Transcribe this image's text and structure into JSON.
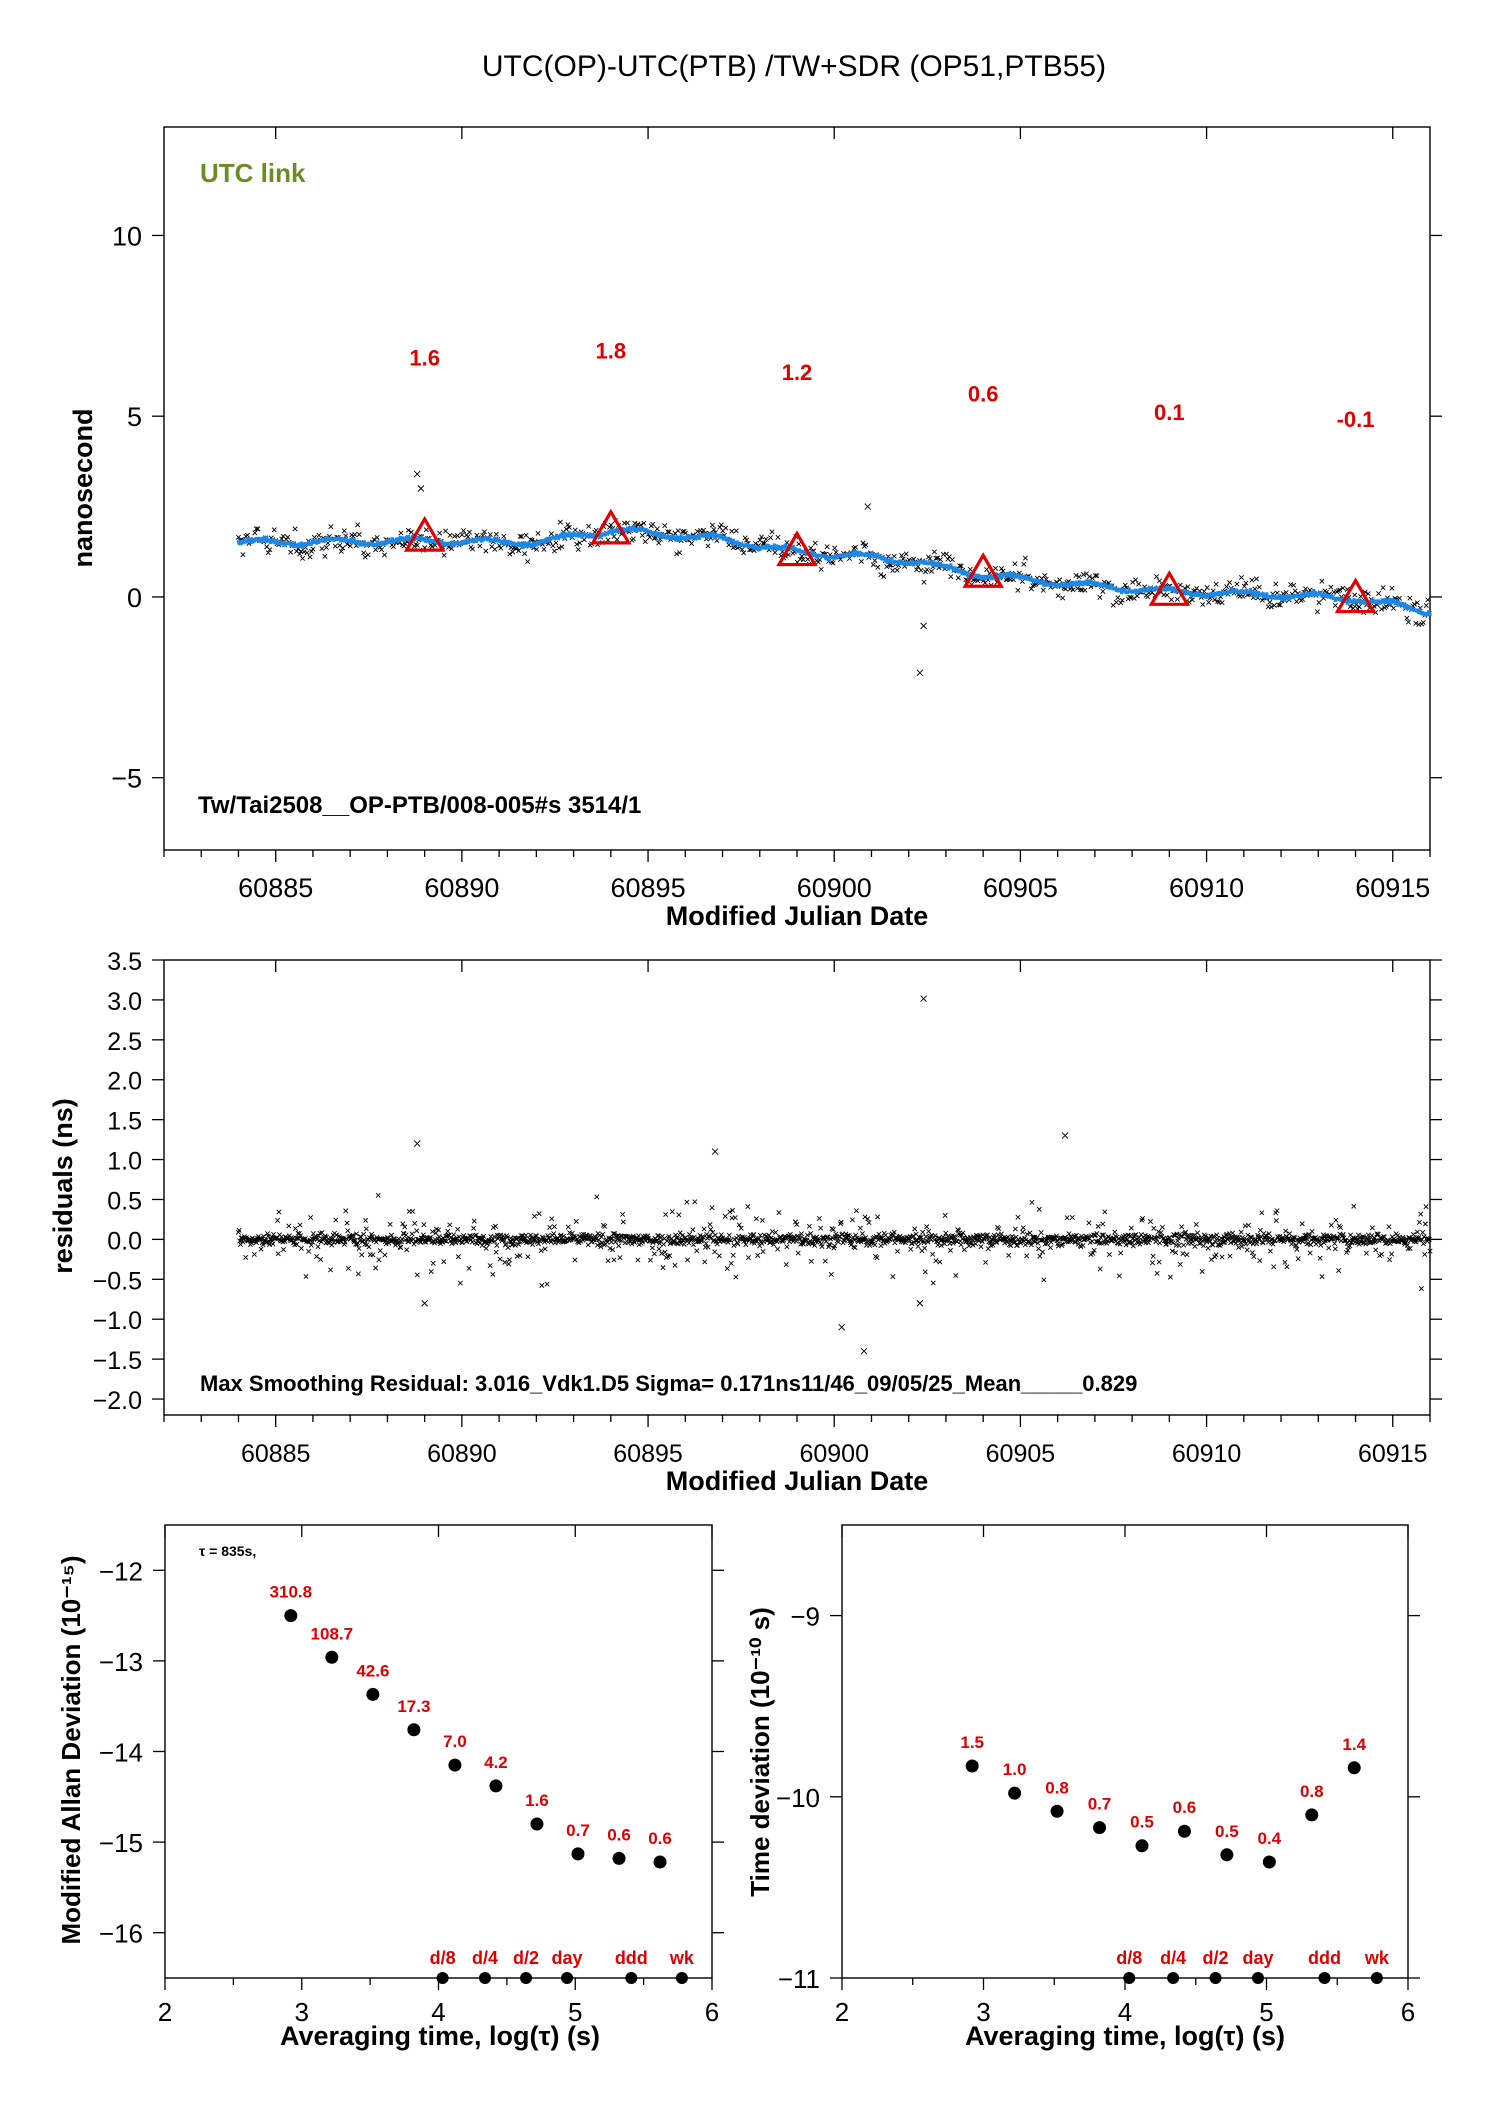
{
  "colors": {
    "axis": "#000000",
    "smooth": "#1e88e5",
    "marker": "#e00000",
    "label_red": "#e00000",
    "utc_link": "#6b8e23",
    "points": "#000000"
  },
  "chart_data": [
    {
      "id": "main",
      "type": "scatter",
      "title": "UTC(OP)-UTC(PTB)  /TW+SDR  (OP51,PTB55)",
      "xlabel": "Modified Julian Date",
      "ylabel": "nanosecond",
      "xlim": [
        60882.0,
        60916.0
      ],
      "ylim": [
        -7.0,
        13.0
      ],
      "xticks": [
        60885,
        60890,
        60895,
        60900,
        60905,
        60910,
        60915
      ],
      "yticks": [
        -5,
        0,
        5,
        10
      ],
      "legend_text": "UTC link",
      "footer_text": "Tw/Tai2508__OP-PTB/008-005#s  3514/1",
      "series_start_mjd": 60884.0,
      "series_end_mjd": 60916.0,
      "trend": [
        {
          "x": 60884.0,
          "y": 1.5
        },
        {
          "x": 60889.0,
          "y": 1.55
        },
        {
          "x": 60892.0,
          "y": 1.5
        },
        {
          "x": 60894.0,
          "y": 1.85
        },
        {
          "x": 60897.0,
          "y": 1.6
        },
        {
          "x": 60899.0,
          "y": 1.25
        },
        {
          "x": 60902.0,
          "y": 1.0
        },
        {
          "x": 60904.0,
          "y": 0.6
        },
        {
          "x": 60907.0,
          "y": 0.3
        },
        {
          "x": 60909.0,
          "y": 0.15
        },
        {
          "x": 60912.0,
          "y": 0.05
        },
        {
          "x": 60914.0,
          "y": -0.05
        },
        {
          "x": 60916.0,
          "y": -0.4
        }
      ],
      "outliers": [
        {
          "x": 60888.8,
          "y": 3.4
        },
        {
          "x": 60888.9,
          "y": 3.0
        },
        {
          "x": 60900.9,
          "y": 2.5
        },
        {
          "x": 60902.3,
          "y": -2.1
        },
        {
          "x": 60902.4,
          "y": -0.8
        }
      ],
      "markers": [
        {
          "x": 60889.0,
          "y": 1.6,
          "label": "1.6"
        },
        {
          "x": 60894.0,
          "y": 1.8,
          "label": "1.8"
        },
        {
          "x": 60899.0,
          "y": 1.2,
          "label": "1.2"
        },
        {
          "x": 60904.0,
          "y": 0.6,
          "label": "0.6"
        },
        {
          "x": 60909.0,
          "y": 0.1,
          "label": "0.1"
        },
        {
          "x": 60914.0,
          "y": -0.1,
          "label": "-0.1"
        }
      ]
    },
    {
      "id": "residuals",
      "type": "scatter",
      "xlabel": "Modified Julian Date",
      "ylabel": "residuals (ns)",
      "xlim": [
        60882.0,
        60916.0
      ],
      "ylim": [
        -2.2,
        3.5
      ],
      "xticks": [
        60885,
        60890,
        60895,
        60900,
        60905,
        60910,
        60915
      ],
      "yticks": [
        -2.0,
        -1.5,
        -1.0,
        -0.5,
        0.0,
        0.5,
        1.0,
        1.5,
        2.0,
        2.5,
        3.0,
        3.5
      ],
      "ytick_labels": [
        "−2.0",
        "−1.5",
        "−1.0",
        "−0.5",
        "0.0",
        "0.5",
        "1.0",
        "1.5",
        "2.0",
        "2.5",
        "3.0",
        "3.5"
      ],
      "footer_text": "Max Smoothing Residual: 3.016_Vdk1.D5  Sigma= 0.171ns11/46_09/05/25_Mean_____0.829",
      "max_residual": {
        "x": 60902.4,
        "y": 3.016
      },
      "outliers": [
        {
          "x": 60888.8,
          "y": 1.2
        },
        {
          "x": 60896.8,
          "y": 1.1
        },
        {
          "x": 60906.2,
          "y": 1.3
        },
        {
          "x": 60900.2,
          "y": -1.1
        },
        {
          "x": 60900.8,
          "y": -1.4
        },
        {
          "x": 60902.3,
          "y": -0.8
        },
        {
          "x": 60889.0,
          "y": -0.8
        }
      ]
    },
    {
      "id": "mdev",
      "type": "scatter",
      "xlabel": "Averaging time, log(τ) (s)",
      "ylabel": "Modified Allan Deviation (10⁻¹⁵)",
      "xlim": [
        2,
        6
      ],
      "ylim": [
        -16.5,
        -11.5
      ],
      "xticks": [
        2,
        3,
        4,
        5,
        6
      ],
      "yticks": [
        -16,
        -15,
        -14,
        -13,
        -12
      ],
      "note": "τ = 835s,",
      "points": [
        {
          "x": 2.92,
          "y": -12.5,
          "label": "310.8"
        },
        {
          "x": 3.22,
          "y": -12.96,
          "label": "108.7"
        },
        {
          "x": 3.52,
          "y": -13.37,
          "label": "42.6"
        },
        {
          "x": 3.82,
          "y": -13.76,
          "label": "17.3"
        },
        {
          "x": 4.12,
          "y": -14.15,
          "label": "7.0"
        },
        {
          "x": 4.42,
          "y": -14.38,
          "label": "4.2"
        },
        {
          "x": 4.72,
          "y": -14.8,
          "label": "1.6"
        },
        {
          "x": 5.02,
          "y": -15.13,
          "label": "0.7"
        },
        {
          "x": 5.32,
          "y": -15.18,
          "label": "0.6"
        },
        {
          "x": 5.62,
          "y": -15.22,
          "label": "0.6"
        }
      ],
      "bottom_markers": [
        {
          "x": 4.03,
          "label": "d/8"
        },
        {
          "x": 4.34,
          "label": "d/4"
        },
        {
          "x": 4.64,
          "label": "d/2"
        },
        {
          "x": 4.94,
          "label": "day"
        },
        {
          "x": 5.41,
          "label": "ddd"
        },
        {
          "x": 5.78,
          "label": "wk"
        }
      ]
    },
    {
      "id": "tdev",
      "type": "scatter",
      "xlabel": "Averaging time, log(τ) (s)",
      "ylabel": "Time deviation (10⁻¹⁰ s)",
      "xlim": [
        2,
        6
      ],
      "ylim": [
        -11,
        -8.5
      ],
      "xticks": [
        2,
        3,
        4,
        5,
        6
      ],
      "yticks": [
        -11,
        -10,
        -9
      ],
      "points": [
        {
          "x": 2.92,
          "y": -9.83,
          "label": "1.5"
        },
        {
          "x": 3.22,
          "y": -9.98,
          "label": "1.0"
        },
        {
          "x": 3.52,
          "y": -10.08,
          "label": "0.8"
        },
        {
          "x": 3.82,
          "y": -10.17,
          "label": "0.7"
        },
        {
          "x": 4.12,
          "y": -10.27,
          "label": "0.5"
        },
        {
          "x": 4.42,
          "y": -10.19,
          "label": "0.6"
        },
        {
          "x": 4.72,
          "y": -10.32,
          "label": "0.5"
        },
        {
          "x": 5.02,
          "y": -10.36,
          "label": "0.4"
        },
        {
          "x": 5.32,
          "y": -10.1,
          "label": "0.8"
        },
        {
          "x": 5.62,
          "y": -9.84,
          "label": "1.4"
        }
      ],
      "bottom_markers": [
        {
          "x": 4.03,
          "label": "d/8"
        },
        {
          "x": 4.34,
          "label": "d/4"
        },
        {
          "x": 4.64,
          "label": "d/2"
        },
        {
          "x": 4.94,
          "label": "day"
        },
        {
          "x": 5.41,
          "label": "ddd"
        },
        {
          "x": 5.78,
          "label": "wk"
        }
      ]
    }
  ]
}
